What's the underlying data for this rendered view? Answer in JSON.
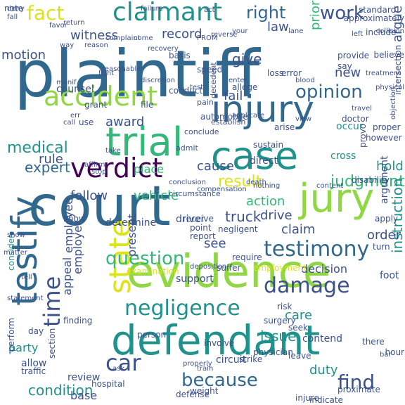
{
  "palette": {
    "dark_purple": "#440154",
    "indigo": "#3b528b",
    "blue": "#31688e",
    "teal": "#21918c",
    "green": "#35b779",
    "lime": "#90d743",
    "yellow": "#dde318"
  },
  "words": [
    {
      "text": "plaintiff",
      "color": "#31688e"
    },
    {
      "text": "court",
      "color": "#31688e"
    },
    {
      "text": "evidence",
      "color": "#90d743"
    },
    {
      "text": "defendant",
      "color": "#21918c"
    },
    {
      "text": "injury",
      "color": "#31688e"
    },
    {
      "text": "trial",
      "color": "#35b779"
    },
    {
      "text": "case",
      "color": "#21918c"
    },
    {
      "text": "jury",
      "color": "#90d743"
    },
    {
      "text": "testify",
      "color": "#31688e"
    },
    {
      "text": "accident",
      "color": "#90d743"
    },
    {
      "text": "claimant",
      "color": "#21918c"
    },
    {
      "text": "verdict",
      "color": "#440154"
    },
    {
      "text": "state",
      "color": "#dde318"
    },
    {
      "text": "time",
      "color": "#3b528b"
    },
    {
      "text": "damage",
      "color": "#3b528b"
    },
    {
      "text": "testimony",
      "color": "#31688e"
    },
    {
      "text": "negligence",
      "color": "#21918c"
    },
    {
      "text": "fact",
      "color": "#dde318"
    },
    {
      "text": "work",
      "color": "#3b528b"
    },
    {
      "text": "right",
      "color": "#31688e"
    },
    {
      "text": "opinion",
      "color": "#31688e"
    },
    {
      "text": "medical",
      "color": "#21918c"
    },
    {
      "text": "because",
      "color": "#31688e"
    },
    {
      "text": "find",
      "color": "#3b528b"
    },
    {
      "text": "car",
      "color": "#3b528b"
    },
    {
      "text": "question",
      "color": "#35b779"
    },
    {
      "text": "condition",
      "color": "#21918c"
    },
    {
      "text": "result",
      "color": "#dde318"
    },
    {
      "text": "judgment",
      "color": "#35b779"
    },
    {
      "text": "truck",
      "color": "#3b528b"
    },
    {
      "text": "issue",
      "color": "#21918c"
    },
    {
      "text": "instruction",
      "color": "#21918c"
    },
    {
      "text": "expert",
      "color": "#31688e"
    },
    {
      "text": "follow",
      "color": "#3b528b"
    },
    {
      "text": "vehicle",
      "color": "#35b779"
    },
    {
      "text": "motion",
      "color": "#3b528b"
    },
    {
      "text": "witness",
      "color": "#3b528b"
    },
    {
      "text": "record",
      "color": "#3b528b"
    },
    {
      "text": "law",
      "color": "#3b528b"
    },
    {
      "text": "give",
      "color": "#3b528b"
    },
    {
      "text": "fail",
      "color": "#3b528b"
    },
    {
      "text": "award",
      "color": "#3b528b"
    },
    {
      "text": "rule",
      "color": "#3b528b"
    },
    {
      "text": "cause",
      "color": "#3b528b"
    },
    {
      "text": "hold",
      "color": "#21918c"
    },
    {
      "text": "action",
      "color": "#35b779"
    },
    {
      "text": "see",
      "color": "#3b528b"
    },
    {
      "text": "drive",
      "color": "#3b528b"
    },
    {
      "text": "claim",
      "color": "#3b528b"
    },
    {
      "text": "order",
      "color": "#3b528b"
    },
    {
      "text": "care",
      "color": "#21918c"
    },
    {
      "text": "duty",
      "color": "#21918c"
    },
    {
      "text": "decision",
      "color": "#3b528b"
    },
    {
      "text": "present",
      "color": "#3b528b"
    },
    {
      "text": "appeal",
      "color": "#3b528b"
    },
    {
      "text": "employer",
      "color": "#3b528b"
    },
    {
      "text": "employee",
      "color": "#3b528b"
    },
    {
      "text": "party",
      "color": "#21918c"
    },
    {
      "text": "review",
      "color": "#3b528b"
    },
    {
      "text": "base",
      "color": "#3b528b"
    },
    {
      "text": "argue",
      "color": "#3b528b"
    },
    {
      "text": "prior",
      "color": "#35b779"
    },
    {
      "text": "new",
      "color": "#3b528b"
    },
    {
      "text": "counsel",
      "color": "#3b528b"
    },
    {
      "text": "conduct",
      "color": "#3b528b"
    },
    {
      "text": "allege",
      "color": "#3b528b"
    },
    {
      "text": "error",
      "color": "#3b528b"
    },
    {
      "text": "loss",
      "color": "#3b528b"
    },
    {
      "text": "pain",
      "color": "#3b528b"
    },
    {
      "text": "establish",
      "color": "#3b528b"
    },
    {
      "text": "occur",
      "color": "#21918c"
    },
    {
      "text": "doctor",
      "color": "#3b528b"
    },
    {
      "text": "cross",
      "color": "#21918c"
    },
    {
      "text": "direct",
      "color": "#3b528b"
    },
    {
      "text": "sustain",
      "color": "#3b528b"
    },
    {
      "text": "conclude",
      "color": "#3b528b"
    },
    {
      "text": "place",
      "color": "#35b779"
    },
    {
      "text": "know",
      "color": "#3b528b"
    },
    {
      "text": "determine",
      "color": "#3b528b"
    },
    {
      "text": "driver",
      "color": "#3b528b"
    },
    {
      "text": "require",
      "color": "#3b528b"
    },
    {
      "text": "suffer",
      "color": "#3b528b"
    },
    {
      "text": "examination",
      "color": "#dde318"
    },
    {
      "text": "consider",
      "color": "#21918c"
    },
    {
      "text": "support",
      "color": "#3b528b"
    },
    {
      "text": "finding",
      "color": "#3b528b"
    },
    {
      "text": "day",
      "color": "#3b528b"
    },
    {
      "text": "allow",
      "color": "#3b528b"
    },
    {
      "text": "contend",
      "color": "#3b528b"
    },
    {
      "text": "seek",
      "color": "#3b528b"
    },
    {
      "text": "risk",
      "color": "#3b528b"
    },
    {
      "text": "surgery",
      "color": "#3b528b"
    },
    {
      "text": "person",
      "color": "#3b528b"
    },
    {
      "text": "involve",
      "color": "#3b528b"
    },
    {
      "text": "circuit",
      "color": "#3b528b"
    },
    {
      "text": "strike",
      "color": "#3b528b"
    },
    {
      "text": "physician",
      "color": "#3b528b"
    },
    {
      "text": "foot",
      "color": "#3b528b"
    },
    {
      "text": "hour",
      "color": "#3b528b"
    },
    {
      "text": "bar",
      "color": "#3b528b"
    },
    {
      "text": "there",
      "color": "#3b528b"
    },
    {
      "text": "indicate",
      "color": "#3b528b"
    },
    {
      "text": "proximate",
      "color": "#3b528b"
    },
    {
      "text": "traffic",
      "color": "#3b528b"
    },
    {
      "text": "employment",
      "color": "#dde318"
    },
    {
      "text": "negligent",
      "color": "#3b528b"
    },
    {
      "text": "report",
      "color": "#3b528b"
    },
    {
      "text": "point",
      "color": "#3b528b"
    },
    {
      "text": "receive",
      "color": "#3b528b"
    },
    {
      "text": "turn",
      "color": "#3b528b"
    },
    {
      "text": "apply",
      "color": "#3b528b"
    },
    {
      "text": "argument",
      "color": "#3b528b"
    },
    {
      "text": "disability",
      "color": "#3b528b"
    },
    {
      "text": "however",
      "color": "#3b528b"
    },
    {
      "text": "proper",
      "color": "#3b528b"
    },
    {
      "text": "automobile",
      "color": "#3b528b"
    },
    {
      "text": "decedent",
      "color": "#3b528b"
    },
    {
      "text": "standard",
      "color": "#3b528b"
    },
    {
      "text": "include",
      "color": "#3b528b"
    },
    {
      "text": "believe",
      "color": "#3b528b"
    },
    {
      "text": "provide",
      "color": "#3b528b"
    },
    {
      "text": "say",
      "color": "#3b528b"
    },
    {
      "text": "speed",
      "color": "#3b528b"
    },
    {
      "text": "basis",
      "color": "#3b528b"
    },
    {
      "text": "file",
      "color": "#3b528b"
    },
    {
      "text": "grant",
      "color": "#3b528b"
    },
    {
      "text": "use",
      "color": "#3b528b"
    },
    {
      "text": "err",
      "color": "#3b528b"
    },
    {
      "text": "manif",
      "color": "#3b528b"
    },
    {
      "text": "light",
      "color": "#3b528b"
    },
    {
      "text": "reasonable",
      "color": "#3b528b"
    },
    {
      "text": "discretion",
      "color": "#3b528b"
    },
    {
      "text": "recovery",
      "color": "#3b528b"
    },
    {
      "text": "reason",
      "color": "#3b528b"
    },
    {
      "text": "way",
      "color": "#3b528b"
    },
    {
      "text": "fall",
      "color": "#3b528b"
    },
    {
      "text": "deny",
      "color": "#3b528b"
    },
    {
      "text": "favor",
      "color": "#3b528b"
    },
    {
      "text": "return",
      "color": "#3b528b"
    },
    {
      "text": "failure",
      "color": "#3b528b"
    },
    {
      "text": "act",
      "color": "#3b528b"
    },
    {
      "text": "note",
      "color": "#3b528b"
    },
    {
      "text": "lane",
      "color": "#3b528b"
    },
    {
      "text": "left",
      "color": "#3b528b"
    },
    {
      "text": "collision",
      "color": "#3b528b"
    },
    {
      "text": "blood",
      "color": "#3b528b"
    },
    {
      "text": "view",
      "color": "#3b528b"
    },
    {
      "text": "test",
      "color": "#3b528b"
    },
    {
      "text": "arise",
      "color": "#3b528b"
    },
    {
      "text": "death",
      "color": "#3b528b"
    },
    {
      "text": "compensation",
      "color": "#3b528b"
    },
    {
      "text": "conclusion",
      "color": "#3b528b"
    },
    {
      "text": "deposition",
      "color": "#3b528b"
    },
    {
      "text": "provo",
      "color": "#3b528b"
    },
    {
      "text": "leave",
      "color": "#3b528b"
    },
    {
      "text": "injure",
      "color": "#3b528b"
    },
    {
      "text": "hospital",
      "color": "#3b528b"
    },
    {
      "text": "defense",
      "color": "#3b528b"
    },
    {
      "text": "weight",
      "color": "#3b528b"
    },
    {
      "text": "properly",
      "color": "#3b528b"
    },
    {
      "text": "section",
      "color": "#3b528b"
    },
    {
      "text": "perform",
      "color": "#3b528b"
    },
    {
      "text": "matter",
      "color": "#3b528b"
    },
    {
      "text": "show",
      "color": "#3b528b"
    },
    {
      "text": "tell",
      "color": "#3b528b"
    },
    {
      "text": "statement",
      "color": "#3b528b"
    },
    {
      "text": "affirm",
      "color": "#3b528b"
    },
    {
      "text": "take",
      "color": "#3b528b"
    },
    {
      "text": "call",
      "color": "#3b528b"
    },
    {
      "text": "stop",
      "color": "#3b528b"
    },
    {
      "text": "train",
      "color": "#3b528b"
    },
    {
      "text": "admit",
      "color": "#3b528b"
    },
    {
      "text": "circumstance",
      "color": "#3b528b"
    },
    {
      "text": "content",
      "color": "#3b528b"
    },
    {
      "text": "objection",
      "color": "#3b528b"
    },
    {
      "text": "intersection",
      "color": "#3b528b"
    },
    {
      "text": "travel",
      "color": "#3b528b"
    },
    {
      "text": "treatment",
      "color": "#3b528b"
    },
    {
      "text": "physical",
      "color": "#3b528b"
    },
    {
      "text": "approximately",
      "color": "#3b528b"
    },
    {
      "text": "your",
      "color": "#3b528b"
    },
    {
      "text": "enter",
      "color": "#3b528b"
    },
    {
      "text": "reverse",
      "color": "#3b528b"
    },
    {
      "text": "complaint",
      "color": "#3b528b"
    },
    {
      "text": "come",
      "color": "#3b528b"
    },
    {
      "text": "PROM",
      "color": "#3b528b"
    },
    {
      "text": "applicate",
      "color": "#3b528b"
    },
    {
      "text": "nothing",
      "color": "#3b528b"
    },
    {
      "text": "ask",
      "color": "#3b528b"
    }
  ]
}
